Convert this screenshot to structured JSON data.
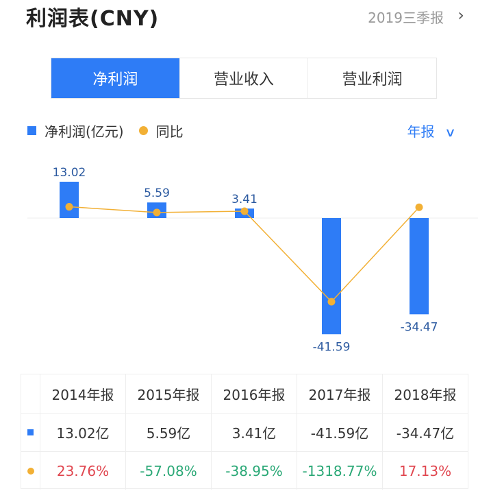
{
  "header": {
    "title": "利润表(CNY)",
    "period": "2019三季报"
  },
  "tabs": [
    "净利润",
    "营业收入",
    "营业利润"
  ],
  "legend": {
    "bar": "净利润(亿元)",
    "line": "同比"
  },
  "period_select": "年报",
  "colors": {
    "accent": "#2e7cf6",
    "line": "#f2b035",
    "positive": "#e0464f",
    "negative": "#2aa876"
  },
  "chart_data": {
    "type": "bar",
    "categories": [
      "2014年报",
      "2015年报",
      "2016年报",
      "2017年报",
      "2018年报"
    ],
    "series": [
      {
        "name": "净利润(亿元)",
        "type": "bar",
        "values": [
          13.02,
          5.59,
          3.41,
          -41.59,
          -34.47
        ],
        "labels": [
          "13.02",
          "5.59",
          "3.41",
          "-41.59",
          "-34.47"
        ]
      },
      {
        "name": "同比",
        "type": "line",
        "values": [
          23.76,
          -57.08,
          -38.95,
          -1318.77,
          17.13
        ]
      }
    ],
    "grid": false
  },
  "table": {
    "headers": [
      "2014年报",
      "2015年报",
      "2016年报",
      "2017年报",
      "2018年报"
    ],
    "values": [
      "13.02亿",
      "5.59亿",
      "3.41亿",
      "-41.59亿",
      "-34.47亿"
    ],
    "yoy": [
      "23.76%",
      "-57.08%",
      "-38.95%",
      "-1318.77%",
      "17.13%"
    ]
  }
}
